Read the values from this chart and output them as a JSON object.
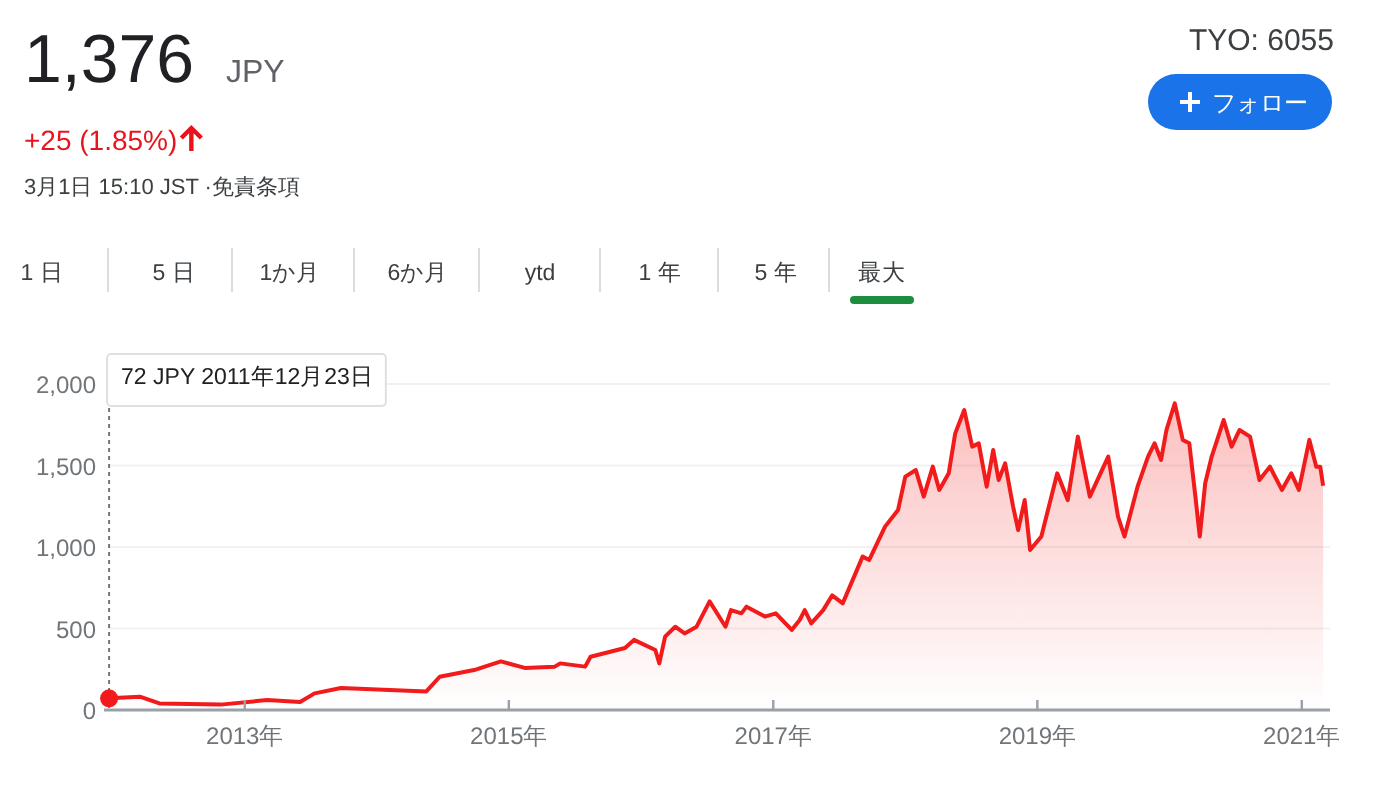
{
  "chart_data": {
    "type": "area",
    "title": "1,376",
    "annotations": [
      "JPY",
      "+25 (1.85%)",
      "3月1日 15:10 JST ·免責条項",
      "TYO: 6055",
      "フォロー",
      "1 日",
      "5 日",
      "1か月",
      "6か月",
      "ytd",
      "1 年",
      "5 年",
      "最大",
      "72 JPY  2011年12月23日"
    ],
    "x": [
      "2011-12-23",
      "2012-03-17",
      "2012-05-10",
      "2012-10-26",
      "2013-03-04",
      "2013-06-03",
      "2013-07-13",
      "2013-09-24",
      "2014-05-18",
      "2014-06-24",
      "2014-09-27",
      "2014-12-10",
      "2015-02-14",
      "2015-05-08",
      "2015-05-23",
      "2015-07-31",
      "2015-08-15",
      "2015-11-18",
      "2015-12-13",
      "2016-02-10",
      "2016-02-21",
      "2016-03-08",
      "2016-04-05",
      "2016-05-01",
      "2016-06-03",
      "2016-07-09",
      "2016-08-22",
      "2016-09-06",
      "2016-10-05",
      "2016-10-19",
      "2016-12-09",
      "2017-01-08",
      "2017-02-21",
      "2017-03-15",
      "2017-03-29",
      "2017-04-16",
      "2017-05-19",
      "2017-06-13",
      "2017-07-12",
      "2017-09-05",
      "2017-09-23",
      "2017-11-06",
      "2017-12-12",
      "2018-01-01",
      "2018-01-30",
      "2018-02-21",
      "2018-03-18",
      "2018-04-05",
      "2018-05-01",
      "2018-05-19",
      "2018-06-13",
      "2018-07-05",
      "2018-07-23",
      "2018-08-14",
      "2018-09-01",
      "2018-09-16",
      "2018-10-04",
      "2018-10-26",
      "2018-11-09",
      "2018-11-27",
      "2018-12-12",
      "2019-01-12",
      "2019-02-25",
      "2019-03-26",
      "2019-04-23",
      "2019-05-26",
      "2019-07-16",
      "2019-08-12",
      "2019-08-30",
      "2019-10-05",
      "2019-11-03",
      "2019-11-21",
      "2019-12-09",
      "2019-12-24",
      "2020-01-16",
      "2020-02-07",
      "2020-02-25",
      "2020-03-14",
      "2020-03-25",
      "2020-04-09",
      "2020-04-27",
      "2020-05-30",
      "2020-06-21",
      "2020-07-13",
      "2020-08-11",
      "2020-09-06",
      "2020-10-05",
      "2020-11-07",
      "2020-12-03",
      "2020-12-24",
      "2021-01-22",
      "2021-02-10",
      "2021-02-21",
      "2021-03-01"
    ],
    "values": [
      72,
      82,
      40,
      33,
      61,
      49,
      102,
      135,
      114,
      204,
      245,
      298,
      258,
      266,
      286,
      266,
      327,
      380,
      430,
      368,
      286,
      450,
      511,
      470,
      511,
      666,
      511,
      613,
      593,
      634,
      573,
      593,
      491,
      552,
      613,
      531,
      613,
      703,
      654,
      941,
      920,
      1125,
      1227,
      1432,
      1472,
      1309,
      1493,
      1350,
      1452,
      1697,
      1840,
      1616,
      1636,
      1370,
      1595,
      1411,
      1513,
      1248,
      1104,
      1288,
      982,
      1064,
      1452,
      1288,
      1677,
      1309,
      1555,
      1186,
      1064,
      1370,
      1555,
      1636,
      1534,
      1718,
      1881,
      1657,
      1636,
      1288,
      1064,
      1391,
      1555,
      1779,
      1616,
      1718,
      1677,
      1411,
      1493,
      1350,
      1452,
      1350,
      1657,
      1493,
      1493,
      1376
    ],
    "color": "#f21b1b",
    "xlim": [
      "2011-12-20",
      "2021-03-20"
    ],
    "xticks": [
      {
        "value": "2013",
        "label": "2013年"
      },
      {
        "value": "2015",
        "label": "2015年"
      },
      {
        "value": "2017",
        "label": "2017年"
      },
      {
        "value": "2019",
        "label": "2019年"
      },
      {
        "value": "2021",
        "label": "2021年"
      }
    ],
    "ylim": [
      0,
      2000
    ],
    "yticks": [
      0,
      500,
      {
        "value": 1000,
        "label": "1,000"
      },
      {
        "value": 1500,
        "label": "1,500"
      },
      {
        "value": 2000,
        "label": "2,000"
      }
    ],
    "grid": "y",
    "ref_lines": [
      {
        "axis": "x",
        "value": "2011-12-23",
        "line_style": "dotted",
        "color": "#777777"
      }
    ]
  }
}
